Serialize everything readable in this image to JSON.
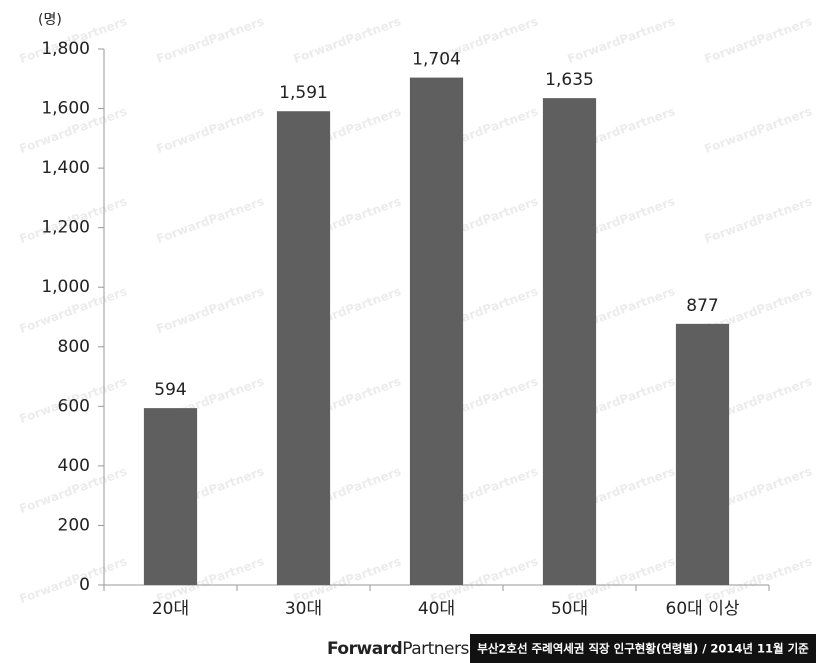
{
  "chart_data": {
    "type": "bar",
    "unit_label": "(명)",
    "categories": [
      "20대",
      "30대",
      "40대",
      "50대",
      "60대 이상"
    ],
    "values": [
      594,
      1591,
      1704,
      1635,
      877
    ],
    "value_labels": [
      "594",
      "1,591",
      "1,704",
      "1,635",
      "877"
    ],
    "color": "#5f5f5f",
    "ylim": [
      0,
      1800
    ],
    "yticks": [
      0,
      200,
      400,
      600,
      800,
      {
        "value": 1000,
        "label": "1,000"
      },
      {
        "value": 1200,
        "label": "1,200"
      },
      {
        "value": 1400,
        "label": "1,400"
      },
      {
        "value": 1600,
        "label": "1,600"
      },
      {
        "value": 1800,
        "label": "1,800"
      }
    ],
    "grid": false
  },
  "watermark": "ForwardPartners",
  "footer": {
    "logo_bold": "Forward",
    "logo_light": "Partners",
    "caption": "부산2호선 주례역세권 직장 인구현황(연령별) / 2014년 11월 기준"
  }
}
